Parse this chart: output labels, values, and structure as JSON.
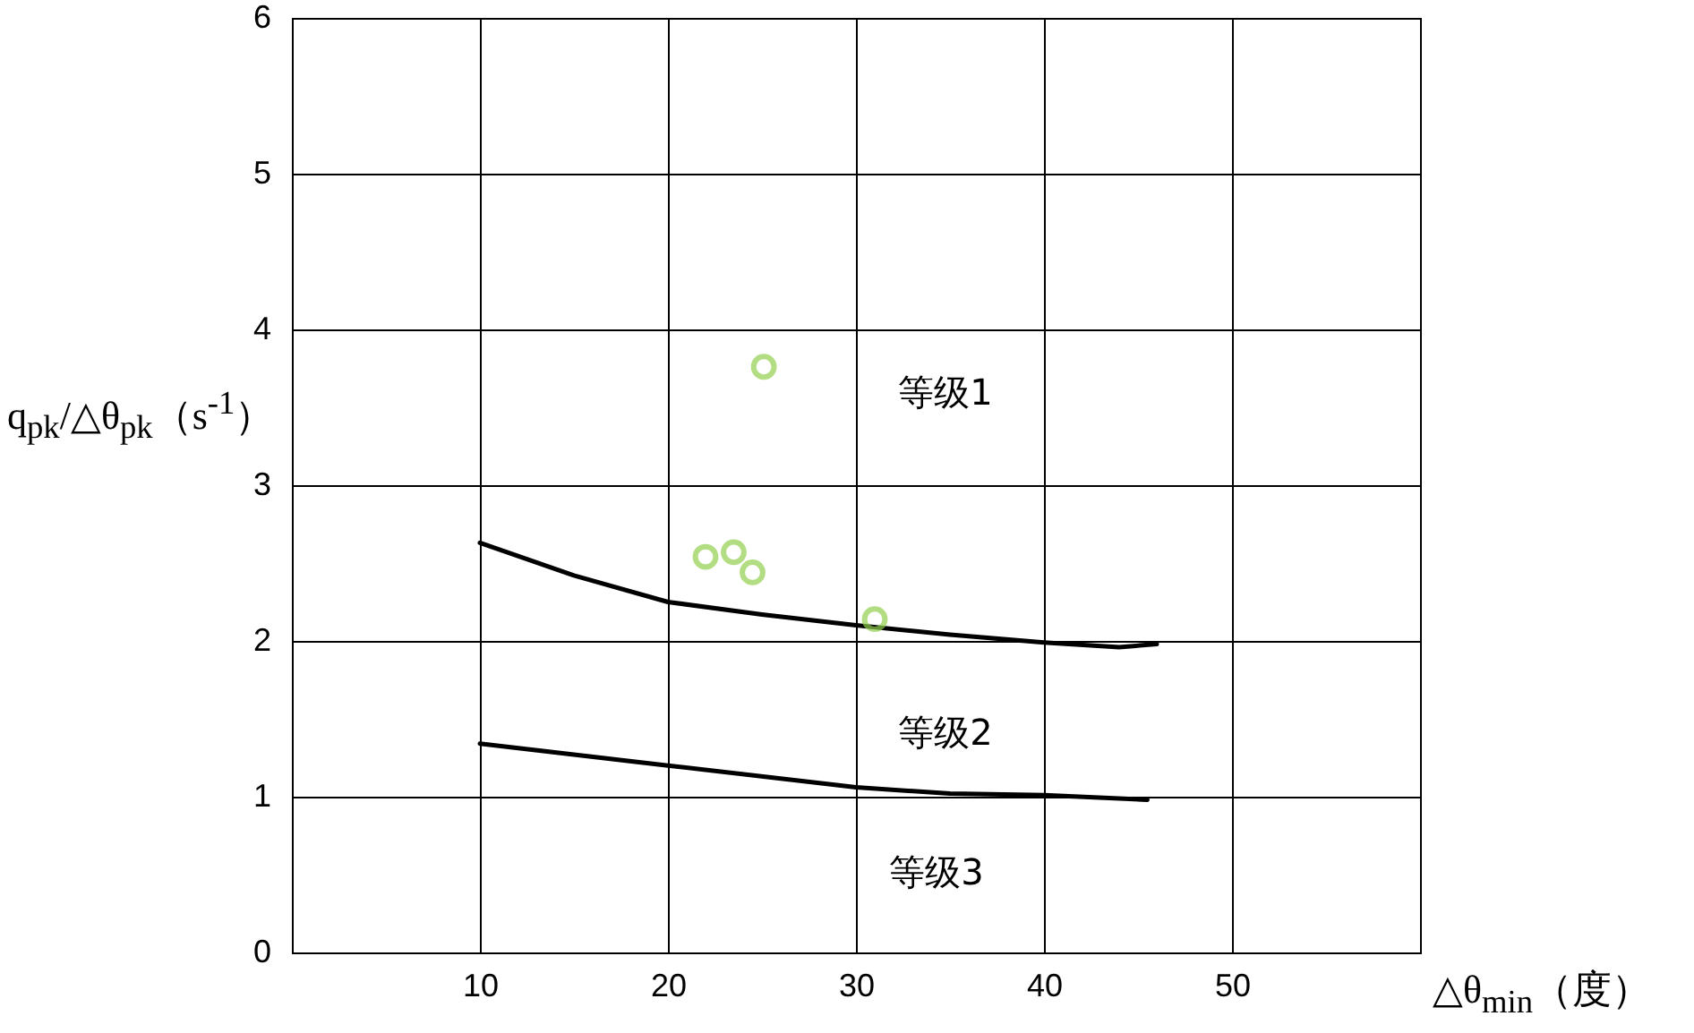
{
  "chart_data": {
    "type": "line",
    "xlabel": "△θ$_{min}$（度）",
    "ylabel": "q$_{pk}$/△θ$_{pk}$（s$^{-1}$）",
    "xlim": [
      0,
      60
    ],
    "ylim": [
      0,
      6
    ],
    "xticks": [
      10,
      20,
      30,
      40,
      50
    ],
    "yticks": [
      0,
      1,
      2,
      3,
      4,
      5,
      6
    ],
    "grid": true,
    "tick_labels": true,
    "series": [
      {
        "type": "line",
        "color": "#000000",
        "x": [
          10,
          15,
          20,
          25,
          30,
          35,
          40,
          44,
          46
        ],
        "values": [
          2.63,
          2.42,
          2.25,
          2.17,
          2.1,
          2.04,
          1.99,
          1.96,
          1.98
        ]
      },
      {
        "type": "line",
        "color": "#000000",
        "x": [
          10,
          20,
          30,
          35,
          40,
          45.5
        ],
        "values": [
          1.34,
          1.2,
          1.06,
          1.02,
          1.01,
          0.98
        ]
      },
      {
        "type": "scatter",
        "color": "#92d050",
        "marker": "circle",
        "x": [
          22,
          23.5,
          24.5,
          25.1,
          31
        ],
        "values": [
          2.54,
          2.57,
          2.44,
          3.76,
          2.14
        ]
      }
    ],
    "annotations": [
      "等级1",
      "等级2",
      "等级3"
    ]
  }
}
